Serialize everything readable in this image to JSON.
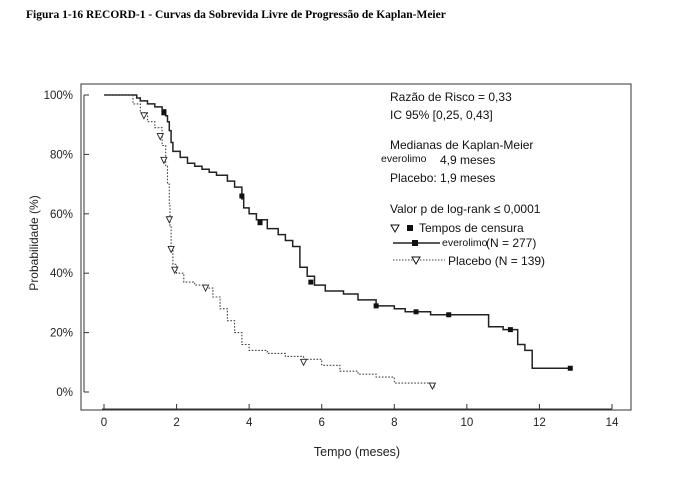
{
  "figure_title": "Figura 1-16 RECORD-1 - Curvas da Sobrevida Livre de Progressão de Kaplan-Meier",
  "chart_data": {
    "type": "line",
    "xlabel": "Tempo (meses)",
    "ylabel": "Probabilidade (%)",
    "xlim": [
      0,
      14
    ],
    "ylim": [
      0,
      100
    ],
    "x_ticks": [
      "0",
      "2",
      "4",
      "6",
      "8",
      "10",
      "12",
      "14"
    ],
    "y_ticks": [
      "0%",
      "20%",
      "40%",
      "60%",
      "80%",
      "100%"
    ],
    "grid": false,
    "annotations": {
      "hazard_ratio": "Razão de Risco = 0,33",
      "ci": "IC 95% [0,25, 0,43]",
      "medians_title": "Medianas de Kaplan-Meier",
      "median_everolimo_name": "everolimo",
      "median_everolimo_value": "4,9 meses",
      "median_placebo": "Placebo: 1,9 meses",
      "pvalue": "Valor p de log-rank ≤ 0,0001",
      "censor_label": "Tempos de censura",
      "legend_everolimo_name": "everolimo",
      "legend_everolimo_n": "(N = 277)",
      "legend_placebo": "Placebo (N = 139)"
    },
    "series": [
      {
        "name": "everolimo",
        "style": "solid",
        "marker": "filled-square",
        "color": "#000000",
        "points": [
          [
            0,
            100
          ],
          [
            0.7,
            100
          ],
          [
            0.9,
            99
          ],
          [
            1.0,
            98
          ],
          [
            1.2,
            97
          ],
          [
            1.4,
            96
          ],
          [
            1.6,
            95
          ],
          [
            1.7,
            93
          ],
          [
            1.75,
            91
          ],
          [
            1.8,
            88
          ],
          [
            1.85,
            84
          ],
          [
            1.9,
            81
          ],
          [
            2.1,
            79
          ],
          [
            2.3,
            77
          ],
          [
            2.5,
            76
          ],
          [
            2.7,
            75
          ],
          [
            2.9,
            74
          ],
          [
            3.1,
            73
          ],
          [
            3.4,
            71
          ],
          [
            3.6,
            69
          ],
          [
            3.8,
            65
          ],
          [
            3.85,
            62
          ],
          [
            4.0,
            60
          ],
          [
            4.2,
            58
          ],
          [
            4.5,
            55
          ],
          [
            4.8,
            53
          ],
          [
            5.0,
            51
          ],
          [
            5.2,
            49
          ],
          [
            5.4,
            42
          ],
          [
            5.6,
            39
          ],
          [
            5.8,
            36
          ],
          [
            6.1,
            34
          ],
          [
            6.6,
            33
          ],
          [
            7.0,
            31
          ],
          [
            7.5,
            29
          ],
          [
            8.0,
            28
          ],
          [
            8.3,
            27
          ],
          [
            9.0,
            26
          ],
          [
            10.0,
            26
          ],
          [
            10.5,
            26
          ],
          [
            10.6,
            22
          ],
          [
            11.0,
            21
          ],
          [
            11.4,
            16
          ],
          [
            11.6,
            14
          ],
          [
            11.8,
            8
          ],
          [
            12.9,
            8
          ]
        ],
        "censored": [
          [
            1.65,
            94
          ],
          [
            3.8,
            66
          ],
          [
            4.3,
            57
          ],
          [
            5.7,
            37
          ],
          [
            7.5,
            29
          ],
          [
            8.6,
            27
          ],
          [
            9.5,
            26
          ],
          [
            11.2,
            21
          ],
          [
            12.85,
            8
          ]
        ]
      },
      {
        "name": "Placebo",
        "style": "dotted",
        "marker": "open-triangle-down",
        "color": "#000000",
        "points": [
          [
            0,
            100
          ],
          [
            0.8,
            97
          ],
          [
            1.0,
            94
          ],
          [
            1.2,
            91
          ],
          [
            1.4,
            89
          ],
          [
            1.6,
            83
          ],
          [
            1.7,
            76
          ],
          [
            1.75,
            70
          ],
          [
            1.8,
            63
          ],
          [
            1.82,
            56
          ],
          [
            1.85,
            49
          ],
          [
            1.9,
            43
          ],
          [
            2.0,
            40
          ],
          [
            2.2,
            37
          ],
          [
            2.5,
            36
          ],
          [
            2.8,
            35
          ],
          [
            3.0,
            32
          ],
          [
            3.2,
            28
          ],
          [
            3.4,
            24
          ],
          [
            3.6,
            20
          ],
          [
            3.8,
            16
          ],
          [
            4.0,
            14
          ],
          [
            4.5,
            13
          ],
          [
            5.0,
            12
          ],
          [
            5.5,
            11
          ],
          [
            6.0,
            9
          ],
          [
            6.5,
            7
          ],
          [
            7.0,
            6
          ],
          [
            7.5,
            5
          ],
          [
            8.0,
            3
          ],
          [
            8.5,
            3
          ],
          [
            9.0,
            2
          ],
          [
            9.1,
            1
          ]
        ],
        "censored": [
          [
            1.1,
            93
          ],
          [
            1.55,
            86
          ],
          [
            1.65,
            78
          ],
          [
            1.8,
            58
          ],
          [
            1.85,
            48
          ],
          [
            1.95,
            41
          ],
          [
            2.8,
            35
          ],
          [
            5.5,
            10
          ],
          [
            9.05,
            2
          ]
        ]
      }
    ]
  }
}
